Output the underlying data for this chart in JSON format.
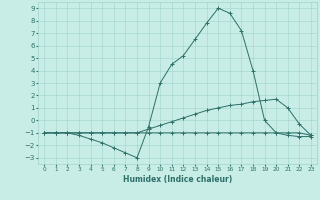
{
  "xlabel": "Humidex (Indice chaleur)",
  "xlim": [
    -0.5,
    23.5
  ],
  "ylim": [
    -3.5,
    9.5
  ],
  "xticks": [
    0,
    1,
    2,
    3,
    4,
    5,
    6,
    7,
    8,
    9,
    10,
    11,
    12,
    13,
    14,
    15,
    16,
    17,
    18,
    19,
    20,
    21,
    22,
    23
  ],
  "yticks": [
    -3,
    -2,
    -1,
    0,
    1,
    2,
    3,
    4,
    5,
    6,
    7,
    8,
    9
  ],
  "bg_color": "#c8ece6",
  "line_color": "#2d7068",
  "grid_color": "#a0d4cc",
  "line1_x": [
    0,
    1,
    2,
    3,
    4,
    5,
    6,
    7,
    8,
    9,
    10,
    11,
    12,
    13,
    14,
    15,
    16,
    17,
    18,
    19,
    20,
    21,
    22,
    23
  ],
  "line1_y": [
    -1,
    -1,
    -1,
    -1.2,
    -1.5,
    -1.8,
    -2.2,
    -2.6,
    -3.0,
    -0.5,
    3.0,
    4.5,
    5.2,
    6.5,
    7.8,
    9.0,
    8.6,
    7.2,
    4.0,
    0.0,
    -1.0,
    -1.2,
    -1.3,
    -1.3
  ],
  "line2_x": [
    0,
    1,
    2,
    3,
    4,
    5,
    6,
    7,
    8,
    9,
    10,
    11,
    12,
    13,
    14,
    15,
    16,
    17,
    18,
    19,
    20,
    21,
    22,
    23
  ],
  "line2_y": [
    -1,
    -1,
    -1,
    -1,
    -1,
    -1,
    -1,
    -1,
    -1,
    -0.7,
    -0.4,
    -0.1,
    0.2,
    0.5,
    0.8,
    1.0,
    1.2,
    1.3,
    1.5,
    1.6,
    1.7,
    1.0,
    -0.3,
    -1.2
  ],
  "line3_x": [
    0,
    1,
    2,
    3,
    4,
    5,
    6,
    7,
    8,
    9,
    10,
    11,
    12,
    13,
    14,
    15,
    16,
    17,
    18,
    19,
    20,
    21,
    22,
    23
  ],
  "line3_y": [
    -1,
    -1,
    -1,
    -1,
    -1,
    -1,
    -1,
    -1,
    -1,
    -1,
    -1,
    -1,
    -1,
    -1,
    -1,
    -1,
    -1,
    -1,
    -1,
    -1,
    -1,
    -1,
    -1,
    -1.2
  ]
}
